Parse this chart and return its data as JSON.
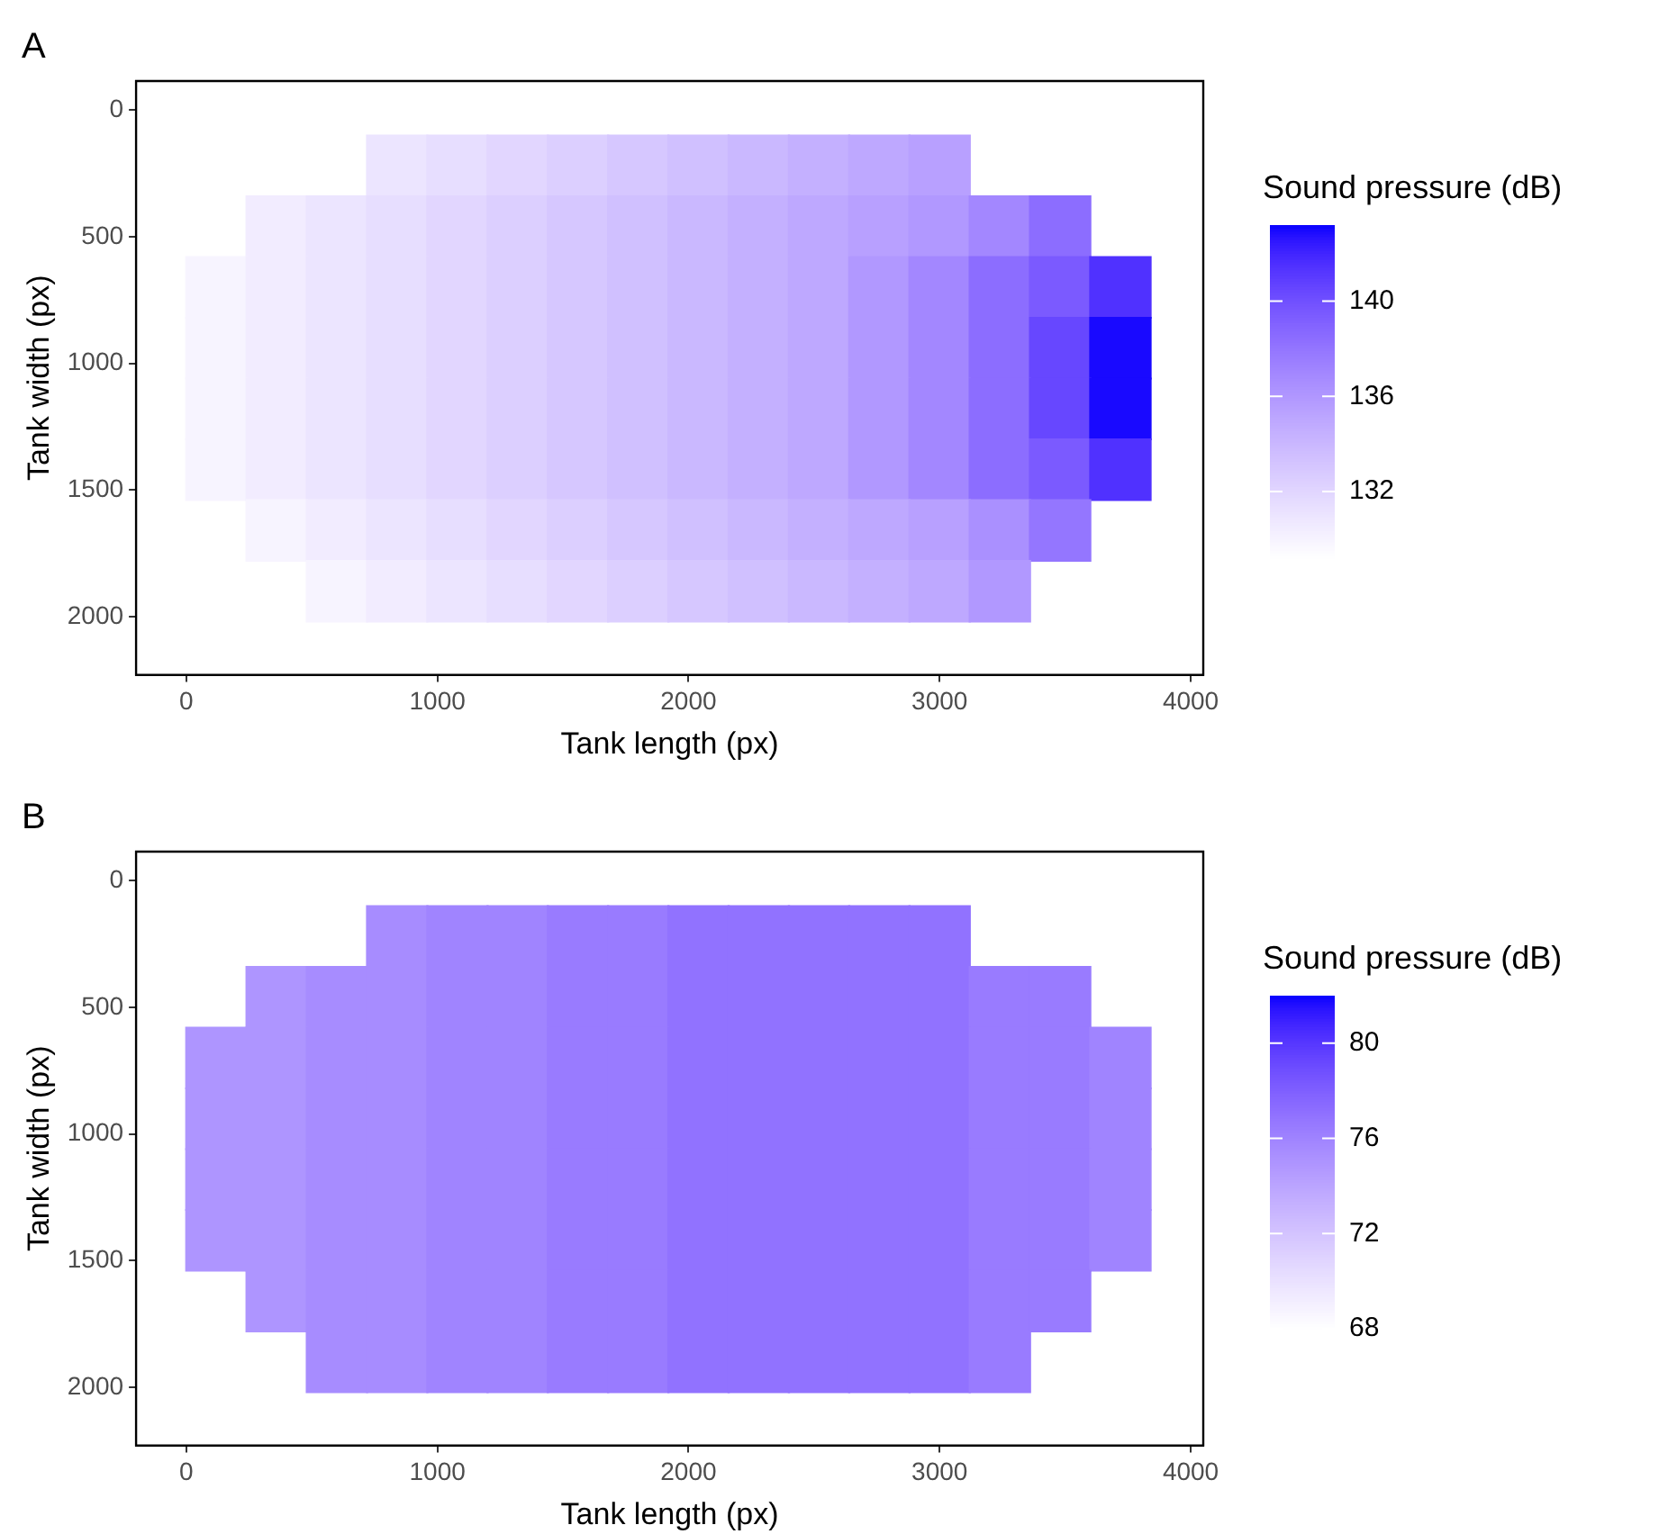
{
  "chart_data": [
    {
      "type": "scatter",
      "title": "A",
      "xlabel": "Tank length (px)",
      "ylabel": "Tank width (px)",
      "clabel": "Sound pressure (dB)",
      "marker": "square",
      "grid": false,
      "xlim": [
        -200,
        4050
      ],
      "xticks": [
        0,
        1000,
        2000,
        3000,
        4000
      ],
      "ylim": [
        2230,
        -115
      ],
      "yticks": [
        0,
        500,
        1000,
        1500,
        2000
      ],
      "clim": [
        129.2,
        143.2
      ],
      "cticks": [
        132,
        136,
        140
      ],
      "x": [
        840,
        1080,
        1320,
        1560,
        1800,
        2040,
        2280,
        2520,
        2760,
        3000,
        360,
        600,
        840,
        1080,
        1320,
        1560,
        1800,
        2040,
        2280,
        2520,
        2760,
        3000,
        3240,
        3480,
        120,
        360,
        600,
        840,
        1080,
        1320,
        1560,
        1800,
        2040,
        2280,
        2520,
        2760,
        3000,
        3240,
        3480,
        3720,
        120,
        360,
        600,
        840,
        1080,
        1320,
        1560,
        1800,
        2040,
        2280,
        2520,
        2760,
        3000,
        3240,
        3480,
        3720,
        120,
        360,
        600,
        840,
        1080,
        1320,
        1560,
        1800,
        2040,
        2280,
        2520,
        2760,
        3000,
        3240,
        3480,
        3720,
        120,
        360,
        600,
        840,
        1080,
        1320,
        1560,
        1800,
        2040,
        2280,
        2520,
        2760,
        3000,
        3240,
        3480,
        3720,
        360,
        600,
        840,
        1080,
        1320,
        1560,
        1800,
        2040,
        2280,
        2520,
        2760,
        3000,
        3240,
        3480,
        600,
        840,
        1080,
        1320,
        1560,
        1800,
        2040,
        2280,
        2520,
        2760,
        3000,
        3240
      ],
      "values": [
        220,
        220,
        220,
        220,
        220,
        220,
        220,
        220,
        220,
        220,
        460,
        460,
        460,
        460,
        460,
        460,
        460,
        460,
        460,
        460,
        460,
        460,
        460,
        460,
        700,
        700,
        700,
        700,
        700,
        700,
        700,
        700,
        700,
        700,
        700,
        700,
        700,
        700,
        700,
        700,
        940,
        940,
        940,
        940,
        940,
        940,
        940,
        940,
        940,
        940,
        940,
        940,
        940,
        940,
        940,
        940,
        1180,
        1180,
        1180,
        1180,
        1180,
        1180,
        1180,
        1180,
        1180,
        1180,
        1180,
        1180,
        1180,
        1180,
        1180,
        1180,
        1420,
        1420,
        1420,
        1420,
        1420,
        1420,
        1420,
        1420,
        1420,
        1420,
        1420,
        1420,
        1420,
        1420,
        1420,
        1420,
        1660,
        1660,
        1660,
        1660,
        1660,
        1660,
        1660,
        1660,
        1660,
        1660,
        1660,
        1660,
        1660,
        1660,
        1900,
        1900,
        1900,
        1900,
        1900,
        1900,
        1900,
        1900,
        1900,
        1900,
        1900,
        1900
      ],
      "cvalues": [
        131,
        131.5,
        132,
        132.5,
        133,
        133.5,
        134,
        134.5,
        135,
        135.5,
        130.5,
        131,
        131.5,
        132,
        132.5,
        133,
        133.5,
        134,
        134.5,
        135,
        135.5,
        136,
        137,
        138.5,
        130,
        130.5,
        131,
        131.5,
        132,
        132.5,
        133,
        133.5,
        134,
        134.5,
        135,
        136,
        137,
        138.5,
        139.5,
        141.5,
        130,
        130.5,
        131,
        131.5,
        132,
        132.5,
        133,
        133.5,
        134,
        134.5,
        135,
        136,
        137,
        138.5,
        140.5,
        143,
        130,
        130.5,
        131,
        131.5,
        132,
        132.5,
        133,
        133.5,
        134,
        134.5,
        135,
        136,
        137,
        138.5,
        140.5,
        143,
        130,
        130.5,
        131,
        131.5,
        132,
        132.5,
        133,
        133.5,
        134,
        134.5,
        135,
        136,
        137,
        138.5,
        139.5,
        141.5,
        130,
        130.5,
        131,
        131.5,
        132,
        132.5,
        133,
        133.5,
        134,
        134.5,
        135,
        135.5,
        136.5,
        138,
        130,
        130.5,
        131,
        131.5,
        132,
        132.5,
        133,
        133.5,
        134,
        134.5,
        135,
        136
      ]
    },
    {
      "type": "scatter",
      "title": "B",
      "xlabel": "Tank length (px)",
      "ylabel": "Tank width (px)",
      "clabel": "Sound pressure (dB)",
      "marker": "square",
      "grid": false,
      "xlim": [
        -200,
        4050
      ],
      "xticks": [
        0,
        1000,
        2000,
        3000,
        4000
      ],
      "ylim": [
        2230,
        -115
      ],
      "yticks": [
        0,
        500,
        1000,
        1500,
        2000
      ],
      "clim": [
        68,
        82
      ],
      "cticks": [
        68,
        72,
        76,
        80
      ],
      "x": [
        840,
        1080,
        1320,
        1560,
        1800,
        2040,
        2280,
        2520,
        2760,
        3000,
        360,
        600,
        840,
        1080,
        1320,
        1560,
        1800,
        2040,
        2280,
        2520,
        2760,
        3000,
        3240,
        3480,
        120,
        360,
        600,
        840,
        1080,
        1320,
        1560,
        1800,
        2040,
        2280,
        2520,
        2760,
        3000,
        3240,
        3480,
        3720,
        120,
        360,
        600,
        840,
        1080,
        1320,
        1560,
        1800,
        2040,
        2280,
        2520,
        2760,
        3000,
        3240,
        3480,
        3720,
        120,
        360,
        600,
        840,
        1080,
        1320,
        1560,
        1800,
        2040,
        2280,
        2520,
        2760,
        3000,
        3240,
        3480,
        3720,
        120,
        360,
        600,
        840,
        1080,
        1320,
        1560,
        1800,
        2040,
        2280,
        2520,
        2760,
        3000,
        3240,
        3480,
        3720,
        360,
        600,
        840,
        1080,
        1320,
        1560,
        1800,
        2040,
        2280,
        2520,
        2760,
        3000,
        3240,
        3480,
        600,
        840,
        1080,
        1320,
        1560,
        1800,
        2040,
        2280,
        2520,
        2760,
        3000,
        3240
      ],
      "values": [
        220,
        220,
        220,
        220,
        220,
        220,
        220,
        220,
        220,
        220,
        460,
        460,
        460,
        460,
        460,
        460,
        460,
        460,
        460,
        460,
        460,
        460,
        460,
        460,
        700,
        700,
        700,
        700,
        700,
        700,
        700,
        700,
        700,
        700,
        700,
        700,
        700,
        700,
        700,
        700,
        940,
        940,
        940,
        940,
        940,
        940,
        940,
        940,
        940,
        940,
        940,
        940,
        940,
        940,
        940,
        940,
        1180,
        1180,
        1180,
        1180,
        1180,
        1180,
        1180,
        1180,
        1180,
        1180,
        1180,
        1180,
        1180,
        1180,
        1180,
        1180,
        1420,
        1420,
        1420,
        1420,
        1420,
        1420,
        1420,
        1420,
        1420,
        1420,
        1420,
        1420,
        1420,
        1420,
        1420,
        1420,
        1660,
        1660,
        1660,
        1660,
        1660,
        1660,
        1660,
        1660,
        1660,
        1660,
        1660,
        1660,
        1660,
        1660,
        1900,
        1900,
        1900,
        1900,
        1900,
        1900,
        1900,
        1900,
        1900,
        1900,
        1900,
        1900
      ],
      "cvalues": [
        75.5,
        76,
        76,
        76.5,
        76.5,
        77,
        77,
        77,
        77,
        77,
        75,
        75.5,
        75.5,
        76,
        76,
        76.5,
        76.5,
        77,
        77,
        77,
        77,
        77,
        76.5,
        76.5,
        75,
        75,
        75.5,
        75.5,
        76,
        76,
        76.5,
        76.5,
        77,
        77,
        77,
        77,
        77,
        76.5,
        76.5,
        76,
        75,
        75,
        75.5,
        75.5,
        76,
        76,
        76.5,
        76.5,
        77,
        77,
        77,
        77,
        77,
        76.5,
        76.5,
        76,
        75,
        75,
        75.5,
        75.5,
        76,
        76,
        76.5,
        76.5,
        77,
        77,
        77,
        77,
        77,
        76.5,
        76.5,
        76,
        75,
        75,
        75.5,
        75.5,
        76,
        76,
        76.5,
        76.5,
        77,
        77,
        77,
        77,
        77,
        76.5,
        76.5,
        76,
        75,
        75.5,
        75.5,
        76,
        76,
        76.5,
        76.5,
        77,
        77,
        77,
        77,
        77,
        76.5,
        76.5,
        75.5,
        75.5,
        76,
        76,
        76.5,
        76.5,
        77,
        77,
        77,
        77,
        77,
        76.5
      ]
    }
  ]
}
